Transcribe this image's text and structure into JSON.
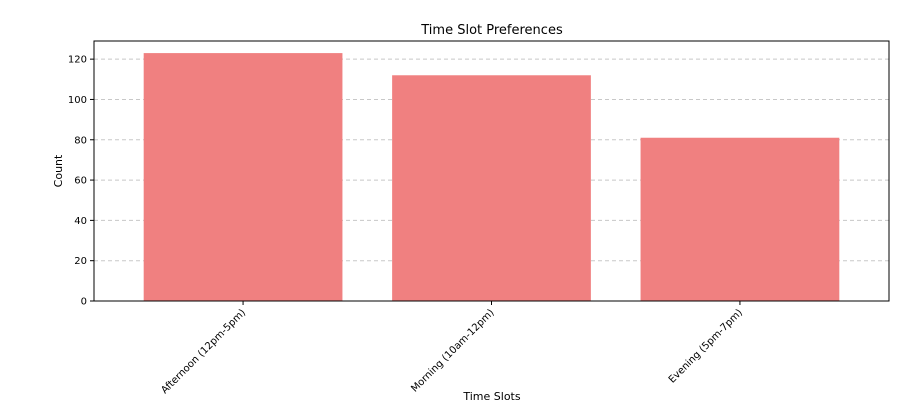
{
  "chart_data": {
    "type": "bar",
    "title": "Time Slot Preferences",
    "xlabel": "Time Slots",
    "ylabel": "Count",
    "categories": [
      "Afternoon (12pm-5pm)",
      "Morning (10am-12pm)",
      "Evening (5pm-7pm)"
    ],
    "values": [
      123,
      112,
      81
    ],
    "ylim": [
      0,
      129
    ],
    "yticks": [
      0,
      20,
      40,
      60,
      80,
      100,
      120
    ],
    "grid": "y-dashed",
    "bar_color": "#f08080"
  }
}
